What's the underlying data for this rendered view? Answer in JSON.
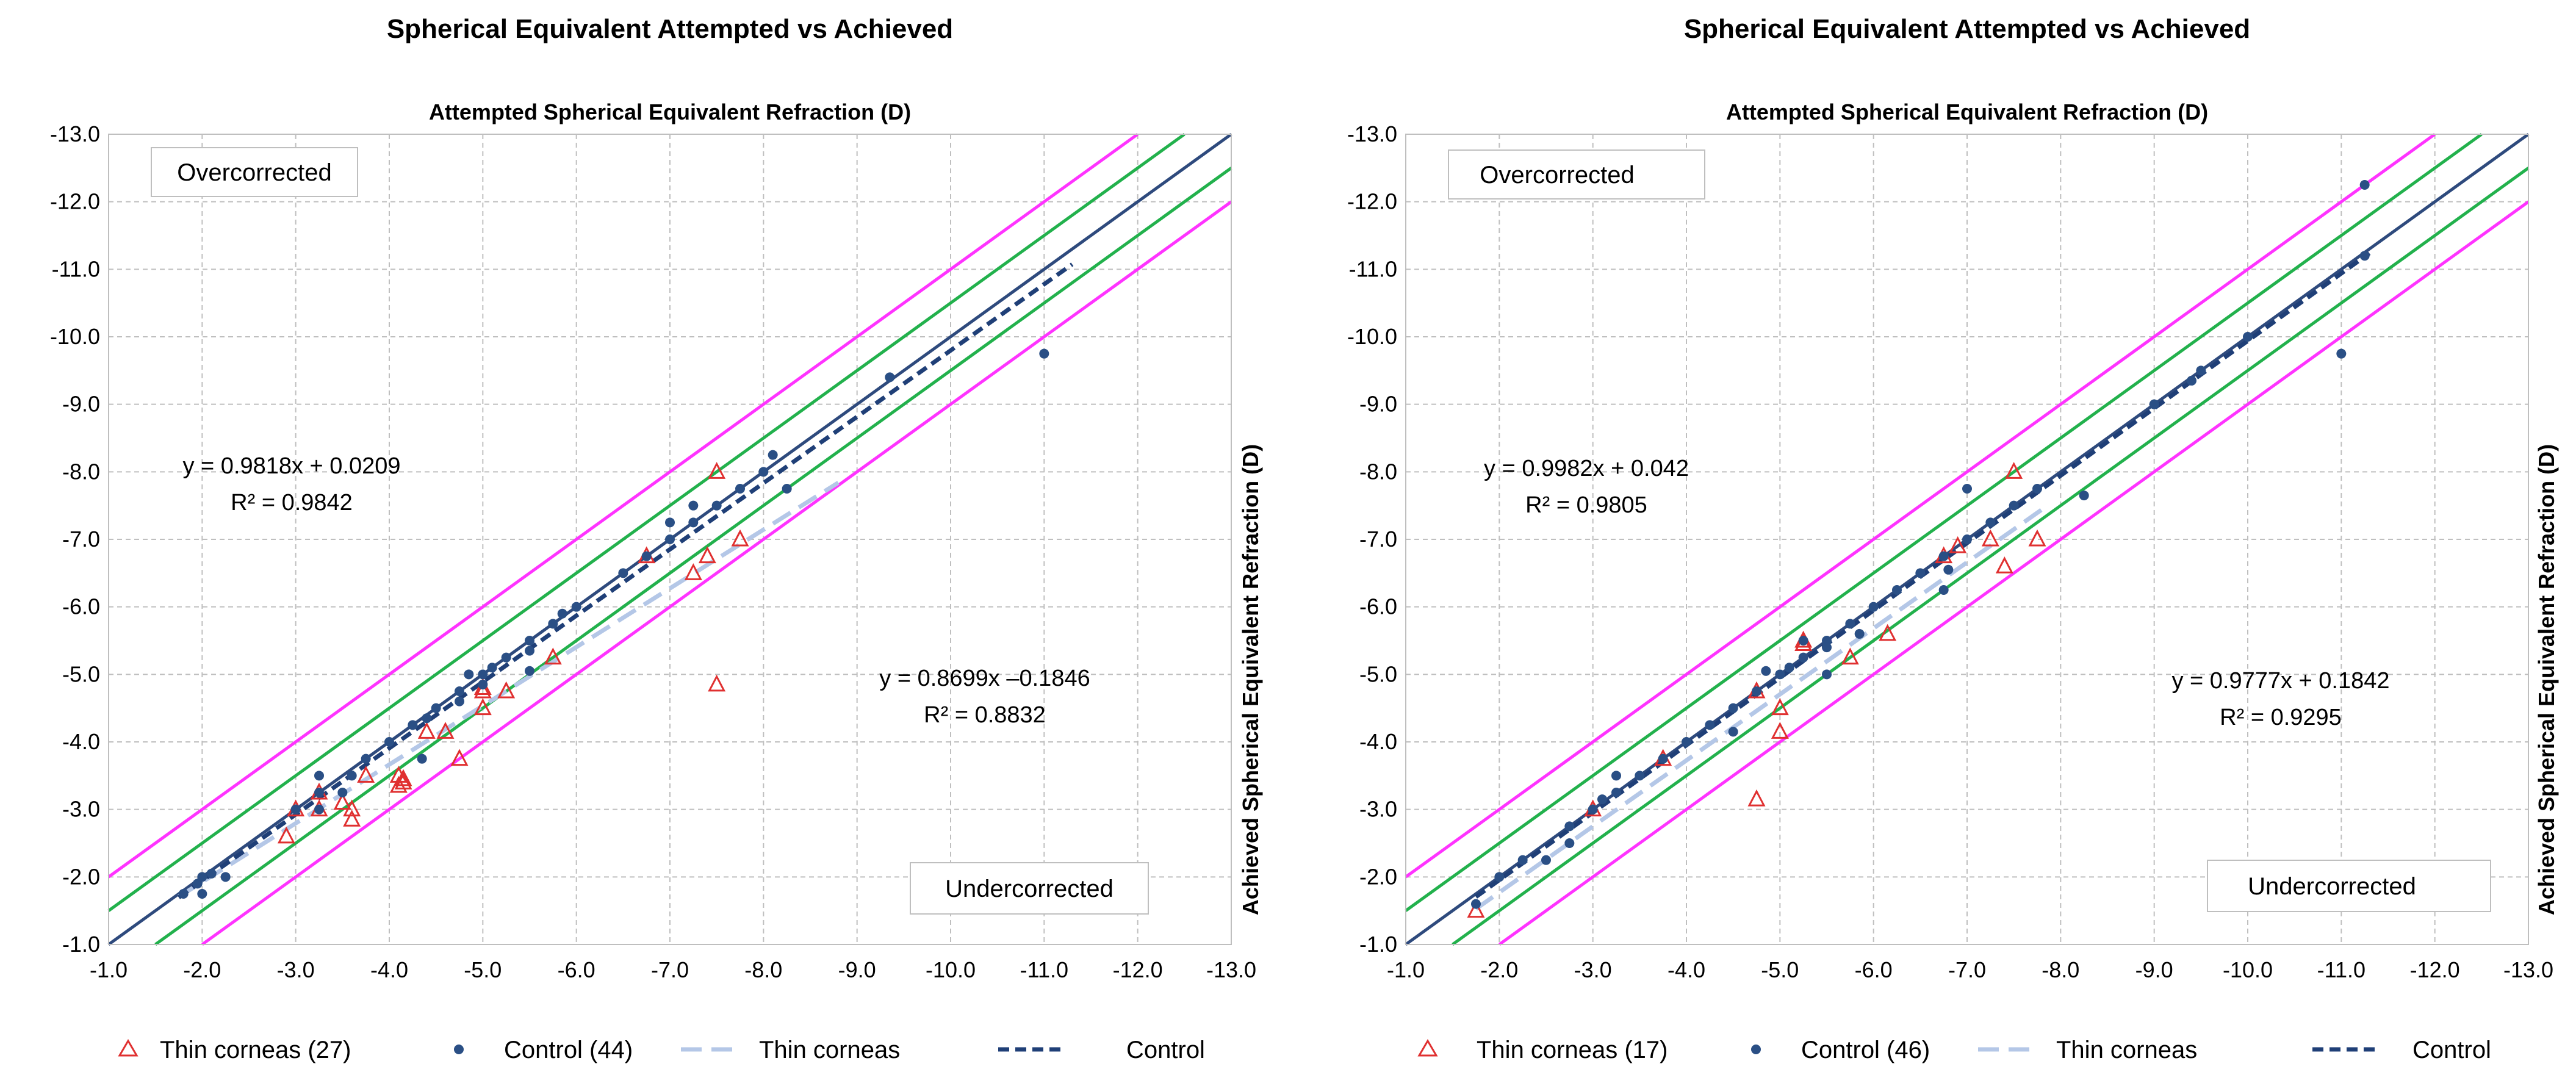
{
  "chart_data": [
    {
      "type": "scatter",
      "title": "Spherical Equivalent Attempted vs Achieved",
      "xlabel": "Attempted Spherical Equivalent Refraction (D)",
      "ylabel": "Achieved Spherical Equivalent Refraction (D)",
      "xlim": [
        -1.0,
        -13.0
      ],
      "ylim": [
        -1.0,
        -13.0
      ],
      "x_ticks": [
        "-1.0",
        "-2.0",
        "-3.0",
        "-4.0",
        "-5.0",
        "-6.0",
        "-7.0",
        "-8.0",
        "-9.0",
        "-10.0",
        "-11.0",
        "-12.0",
        "-13.0"
      ],
      "y_ticks": [
        "-1.0",
        "-2.0",
        "-3.0",
        "-4.0",
        "-5.0",
        "-6.0",
        "-7.0",
        "-8.0",
        "-9.0",
        "-10.0",
        "-11.0",
        "-12.0",
        "-13.0"
      ],
      "grid": true,
      "annotations": {
        "overcorrected": "Overcorrected",
        "undercorrected": "Undercorrected",
        "control_eq": "y = 0.9818x + 0.0209",
        "control_r2": "R² = 0.9842",
        "thin_eq": "y = 0.8699x –0.1846",
        "thin_r2": "R² = 0.8832"
      },
      "reference_lines": [
        {
          "name": "identity",
          "offset": 0.0,
          "color": "#2e4a7d"
        },
        {
          "name": "+0.5 D",
          "offset": -0.5,
          "color": "#22b14c"
        },
        {
          "name": "-0.5 D",
          "offset": 0.5,
          "color": "#22b14c"
        },
        {
          "name": "+1.0 D",
          "offset": -1.0,
          "color": "#ff33ff"
        },
        {
          "name": "-1.0 D",
          "offset": 1.0,
          "color": "#ff33ff"
        }
      ],
      "trendlines": [
        {
          "name": "Thin corneas",
          "slope": 0.8699,
          "intercept": -0.1846,
          "x_range": [
            -1.75,
            -8.8
          ],
          "color": "#b4c7e7",
          "dash": "long"
        },
        {
          "name": "Control",
          "slope": 0.9818,
          "intercept": 0.0209,
          "x_range": [
            -1.75,
            -11.3
          ],
          "color": "#1f3f77",
          "dash": "short"
        }
      ],
      "series": [
        {
          "name": "Thin corneas (27)",
          "marker": "triangle",
          "color": "#e03030",
          "points": [
            [
              -2.9,
              -2.6
            ],
            [
              -3.0,
              -3.0
            ],
            [
              -3.25,
              -3.0
            ],
            [
              -3.25,
              -3.25
            ],
            [
              -3.5,
              -3.1
            ],
            [
              -3.6,
              -3.0
            ],
            [
              -3.6,
              -2.85
            ],
            [
              -3.75,
              -3.5
            ],
            [
              -4.1,
              -3.5
            ],
            [
              -4.1,
              -3.35
            ],
            [
              -4.15,
              -3.4
            ],
            [
              -4.4,
              -4.15
            ],
            [
              -4.6,
              -4.15
            ],
            [
              -4.75,
              -3.75
            ],
            [
              -5.0,
              -4.5
            ],
            [
              -5.0,
              -4.75
            ],
            [
              -5.25,
              -4.75
            ],
            [
              -5.75,
              -5.25
            ],
            [
              -6.75,
              -6.75
            ],
            [
              -7.25,
              -6.5
            ],
            [
              -7.4,
              -6.75
            ],
            [
              -7.5,
              -8.0
            ],
            [
              -7.5,
              -4.85
            ],
            [
              -7.75,
              -7.0
            ],
            [
              -3.5,
              -3.1
            ],
            [
              -4.15,
              -3.45
            ],
            [
              -5.0,
              -4.8
            ]
          ]
        },
        {
          "name": "Control (44)",
          "marker": "circle",
          "color": "#2a4f85",
          "points": [
            [
              -1.8,
              -1.75
            ],
            [
              -1.95,
              -1.9
            ],
            [
              -2.0,
              -2.0
            ],
            [
              -2.0,
              -1.75
            ],
            [
              -2.1,
              -2.05
            ],
            [
              -2.25,
              -2.0
            ],
            [
              -3.0,
              -3.0
            ],
            [
              -3.25,
              -3.0
            ],
            [
              -3.25,
              -3.25
            ],
            [
              -3.25,
              -3.5
            ],
            [
              -3.5,
              -3.25
            ],
            [
              -3.6,
              -3.5
            ],
            [
              -3.75,
              -3.75
            ],
            [
              -4.0,
              -4.0
            ],
            [
              -4.25,
              -4.25
            ],
            [
              -4.35,
              -3.75
            ],
            [
              -4.4,
              -4.35
            ],
            [
              -4.5,
              -4.5
            ],
            [
              -4.75,
              -4.75
            ],
            [
              -4.85,
              -5.0
            ],
            [
              -5.0,
              -5.0
            ],
            [
              -5.0,
              -4.85
            ],
            [
              -5.1,
              -5.1
            ],
            [
              -5.25,
              -5.25
            ],
            [
              -5.5,
              -5.5
            ],
            [
              -5.5,
              -5.05
            ],
            [
              -5.75,
              -5.75
            ],
            [
              -5.85,
              -5.9
            ],
            [
              -6.0,
              -6.0
            ],
            [
              -6.5,
              -6.5
            ],
            [
              -6.75,
              -6.75
            ],
            [
              -7.0,
              -7.0
            ],
            [
              -7.0,
              -7.25
            ],
            [
              -7.25,
              -7.5
            ],
            [
              -7.25,
              -7.25
            ],
            [
              -7.5,
              -7.5
            ],
            [
              -7.75,
              -7.75
            ],
            [
              -8.0,
              -8.0
            ],
            [
              -8.1,
              -8.25
            ],
            [
              -8.25,
              -7.75
            ],
            [
              -9.35,
              -9.4
            ],
            [
              -11.0,
              -9.75
            ],
            [
              -4.75,
              -4.6
            ],
            [
              -5.5,
              -5.35
            ]
          ]
        }
      ],
      "legend": [
        "Thin corneas (27)",
        "Control (44)",
        "Thin corneas",
        "Control"
      ]
    },
    {
      "type": "scatter",
      "title": "Spherical Equivalent Attempted vs Achieved",
      "xlabel": "Attempted Spherical Equivalent Refraction (D)",
      "ylabel": "Achieved Spherical Equivalent Refraction (D)",
      "xlim": [
        -1.0,
        -13.0
      ],
      "ylim": [
        -1.0,
        -13.0
      ],
      "x_ticks": [
        "-1.0",
        "-2.0",
        "-3.0",
        "-4.0",
        "-5.0",
        "-6.0",
        "-7.0",
        "-8.0",
        "-9.0",
        "-10.0",
        "-11.0",
        "-12.0",
        "-13.0"
      ],
      "y_ticks": [
        "-1.0",
        "-2.0",
        "-3.0",
        "-4.0",
        "-5.0",
        "-6.0",
        "-7.0",
        "-8.0",
        "-9.0",
        "-10.0",
        "-11.0",
        "-12.0",
        "-13.0"
      ],
      "grid": true,
      "annotations": {
        "overcorrected": "Overcorrected",
        "undercorrected": "Undercorrected",
        "control_eq": "y = 0.9982x + 0.042",
        "control_r2": "R² = 0.9805",
        "thin_eq": "y = 0.9777x + 0.1842",
        "thin_r2": "R² = 0.9295"
      },
      "reference_lines": [
        {
          "name": "identity",
          "offset": 0.0,
          "color": "#2e4a7d"
        },
        {
          "name": "+0.5 D",
          "offset": -0.5,
          "color": "#22b14c"
        },
        {
          "name": "-0.5 D",
          "offset": 0.5,
          "color": "#22b14c"
        },
        {
          "name": "+1.0 D",
          "offset": -1.0,
          "color": "#ff33ff"
        },
        {
          "name": "-1.0 D",
          "offset": 1.0,
          "color": "#ff33ff"
        }
      ],
      "trendlines": [
        {
          "name": "Thin corneas",
          "slope": 0.9777,
          "intercept": 0.1842,
          "x_range": [
            -1.75,
            -7.8
          ],
          "color": "#b4c7e7",
          "dash": "long"
        },
        {
          "name": "Control",
          "slope": 0.9982,
          "intercept": 0.042,
          "x_range": [
            -1.75,
            -11.3
          ],
          "color": "#1f3f77",
          "dash": "short"
        }
      ],
      "series": [
        {
          "name": "Thin corneas (17)",
          "marker": "triangle",
          "color": "#e03030",
          "points": [
            [
              -1.75,
              -1.5
            ],
            [
              -3.0,
              -3.0
            ],
            [
              -3.75,
              -3.75
            ],
            [
              -4.75,
              -3.15
            ],
            [
              -4.75,
              -4.75
            ],
            [
              -5.0,
              -4.5
            ],
            [
              -5.0,
              -4.15
            ],
            [
              -5.25,
              -5.5
            ],
            [
              -5.75,
              -5.25
            ],
            [
              -6.15,
              -5.6
            ],
            [
              -6.75,
              -6.75
            ],
            [
              -6.9,
              -6.9
            ],
            [
              -7.25,
              -7.0
            ],
            [
              -7.4,
              -6.6
            ],
            [
              -7.5,
              -8.0
            ],
            [
              -7.75,
              -7.0
            ],
            [
              -5.25,
              -5.45
            ]
          ]
        },
        {
          "name": "Control (46)",
          "marker": "circle",
          "color": "#2a4f85",
          "points": [
            [
              -1.75,
              -1.6
            ],
            [
              -2.0,
              -2.0
            ],
            [
              -2.25,
              -2.25
            ],
            [
              -2.5,
              -2.25
            ],
            [
              -2.75,
              -2.75
            ],
            [
              -2.75,
              -2.5
            ],
            [
              -3.0,
              -3.0
            ],
            [
              -3.1,
              -3.15
            ],
            [
              -3.25,
              -3.25
            ],
            [
              -3.25,
              -3.5
            ],
            [
              -3.5,
              -3.5
            ],
            [
              -3.75,
              -3.75
            ],
            [
              -4.0,
              -4.0
            ],
            [
              -4.25,
              -4.25
            ],
            [
              -4.5,
              -4.5
            ],
            [
              -4.5,
              -4.15
            ],
            [
              -4.75,
              -4.75
            ],
            [
              -4.85,
              -5.05
            ],
            [
              -5.0,
              -5.0
            ],
            [
              -5.1,
              -5.1
            ],
            [
              -5.25,
              -5.25
            ],
            [
              -5.25,
              -5.5
            ],
            [
              -5.5,
              -5.5
            ],
            [
              -5.5,
              -5.0
            ],
            [
              -5.75,
              -5.75
            ],
            [
              -5.85,
              -5.6
            ],
            [
              -6.0,
              -6.0
            ],
            [
              -6.25,
              -6.25
            ],
            [
              -6.5,
              -6.5
            ],
            [
              -6.75,
              -6.75
            ],
            [
              -6.75,
              -6.25
            ],
            [
              -6.8,
              -6.55
            ],
            [
              -7.0,
              -7.0
            ],
            [
              -7.0,
              -7.75
            ],
            [
              -7.25,
              -7.25
            ],
            [
              -7.5,
              -7.5
            ],
            [
              -7.75,
              -7.75
            ],
            [
              -8.25,
              -7.65
            ],
            [
              -9.0,
              -9.0
            ],
            [
              -9.4,
              -9.35
            ],
            [
              -9.5,
              -9.5
            ],
            [
              -10.0,
              -10.0
            ],
            [
              -11.0,
              -9.75
            ],
            [
              -11.25,
              -11.2
            ],
            [
              -11.25,
              -12.25
            ],
            [
              -5.5,
              -5.4
            ]
          ]
        }
      ],
      "legend": [
        "Thin corneas (17)",
        "Control (46)",
        "Thin corneas",
        "Control"
      ]
    }
  ]
}
